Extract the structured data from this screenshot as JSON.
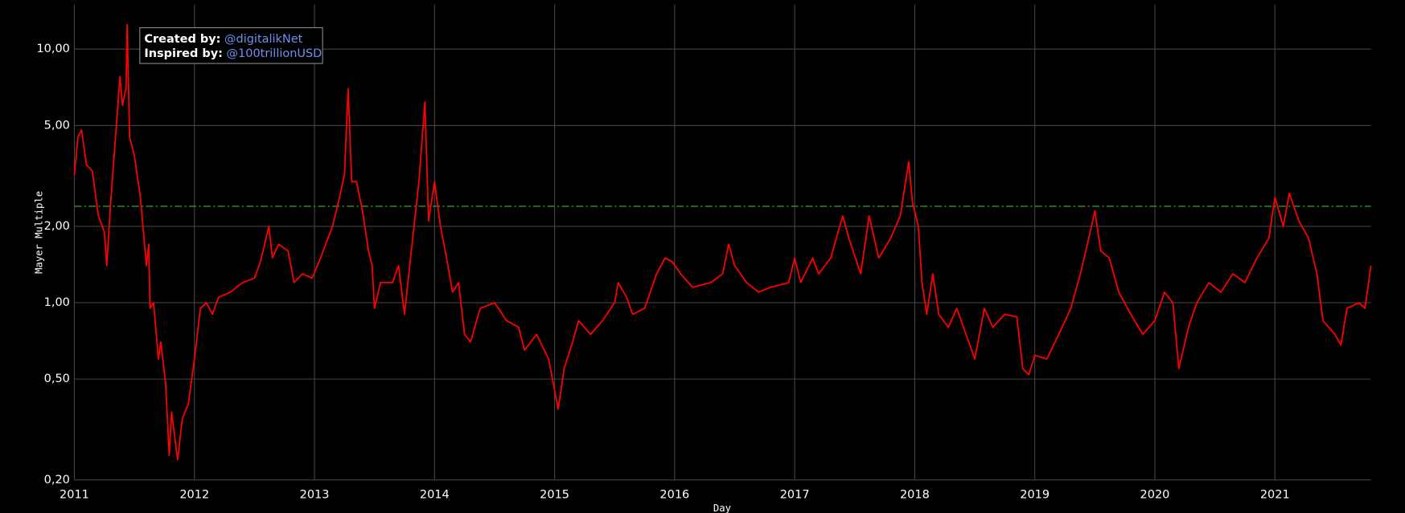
{
  "chart_data": {
    "type": "line",
    "x_label": "Day",
    "y_label": "Mayer Multiple",
    "annotation": {
      "created_label": "Created by:",
      "created_by": "@digitalikNet",
      "inspired_label": "Inspired by:",
      "inspired_by": "@100trillionUSD"
    },
    "color": "#ff0000",
    "log_y": true,
    "grid": true,
    "hline": {
      "value": 2.4,
      "color": "#3e8e3e"
    },
    "xlim": [
      2011,
      2021.8
    ],
    "xticks": [
      2011,
      2012,
      2013,
      2014,
      2015,
      2016,
      2017,
      2018,
      2019,
      2020,
      2021
    ],
    "ylim": [
      0.2,
      15
    ],
    "yticks": [
      {
        "value": 0.2,
        "label": "0,20"
      },
      {
        "value": 0.5,
        "label": "0,50"
      },
      {
        "value": 1,
        "label": "1,00"
      },
      {
        "value": 2,
        "label": "2,00"
      },
      {
        "value": 5,
        "label": "5,00"
      },
      {
        "value": 10,
        "label": "10,00"
      }
    ],
    "x": [
      2011.0,
      2011.03,
      2011.06,
      2011.1,
      2011.15,
      2011.2,
      2011.25,
      2011.27,
      2011.3,
      2011.35,
      2011.38,
      2011.4,
      2011.43,
      2011.44,
      2011.46,
      2011.5,
      2011.55,
      2011.6,
      2011.62,
      2011.63,
      2011.66,
      2011.7,
      2011.72,
      2011.76,
      2011.79,
      2011.81,
      2011.86,
      2011.9,
      2011.95,
      2012.0,
      2012.05,
      2012.1,
      2012.15,
      2012.2,
      2012.3,
      2012.4,
      2012.5,
      2012.55,
      2012.62,
      2012.65,
      2012.7,
      2012.78,
      2012.83,
      2012.9,
      2012.98,
      2013.05,
      2013.15,
      2013.2,
      2013.25,
      2013.28,
      2013.31,
      2013.35,
      2013.4,
      2013.45,
      2013.48,
      2013.5,
      2013.55,
      2013.65,
      2013.7,
      2013.75,
      2013.8,
      2013.87,
      2013.92,
      2013.95,
      2014.0,
      2014.05,
      2014.1,
      2014.15,
      2014.2,
      2014.25,
      2014.3,
      2014.38,
      2014.5,
      2014.6,
      2014.7,
      2014.75,
      2014.85,
      2014.95,
      2015.03,
      2015.08,
      2015.15,
      2015.2,
      2015.3,
      2015.4,
      2015.5,
      2015.53,
      2015.6,
      2015.65,
      2015.75,
      2015.85,
      2015.92,
      2015.98,
      2016.05,
      2016.15,
      2016.3,
      2016.4,
      2016.45,
      2016.5,
      2016.6,
      2016.7,
      2016.8,
      2016.95,
      2017.0,
      2017.05,
      2017.15,
      2017.2,
      2017.3,
      2017.4,
      2017.45,
      2017.55,
      2017.62,
      2017.7,
      2017.8,
      2017.88,
      2017.95,
      2017.98,
      2018.03,
      2018.06,
      2018.1,
      2018.15,
      2018.2,
      2018.28,
      2018.35,
      2018.45,
      2018.5,
      2018.58,
      2018.65,
      2018.75,
      2018.85,
      2018.9,
      2018.95,
      2019.0,
      2019.1,
      2019.2,
      2019.3,
      2019.38,
      2019.45,
      2019.5,
      2019.55,
      2019.62,
      2019.7,
      2019.8,
      2019.9,
      2020.0,
      2020.08,
      2020.15,
      2020.2,
      2020.28,
      2020.35,
      2020.45,
      2020.55,
      2020.65,
      2020.75,
      2020.85,
      2020.95,
      2021.0,
      2021.07,
      2021.12,
      2021.2,
      2021.28,
      2021.35,
      2021.4,
      2021.5,
      2021.55,
      2021.6,
      2021.7,
      2021.75,
      2021.8
    ],
    "values": [
      3.2,
      4.5,
      4.8,
      3.5,
      3.3,
      2.2,
      1.9,
      1.4,
      2.4,
      5.0,
      7.8,
      6.0,
      7.0,
      12.5,
      4.5,
      3.8,
      2.6,
      1.4,
      1.7,
      0.95,
      1.0,
      0.6,
      0.7,
      0.48,
      0.25,
      0.37,
      0.24,
      0.35,
      0.4,
      0.6,
      0.95,
      1.0,
      0.9,
      1.05,
      1.1,
      1.2,
      1.25,
      1.45,
      2.0,
      1.5,
      1.7,
      1.6,
      1.2,
      1.3,
      1.25,
      1.5,
      2.0,
      2.5,
      3.2,
      7.0,
      3.0,
      3.0,
      2.3,
      1.6,
      1.4,
      0.95,
      1.2,
      1.2,
      1.4,
      0.9,
      1.5,
      3.0,
      6.2,
      2.1,
      3.0,
      2.0,
      1.5,
      1.1,
      1.2,
      0.75,
      0.7,
      0.95,
      1.0,
      0.85,
      0.8,
      0.65,
      0.75,
      0.6,
      0.38,
      0.55,
      0.7,
      0.85,
      0.75,
      0.85,
      1.0,
      1.2,
      1.05,
      0.9,
      0.95,
      1.3,
      1.5,
      1.45,
      1.3,
      1.15,
      1.2,
      1.3,
      1.7,
      1.4,
      1.2,
      1.1,
      1.15,
      1.2,
      1.5,
      1.2,
      1.5,
      1.3,
      1.5,
      2.2,
      1.8,
      1.3,
      2.2,
      1.5,
      1.8,
      2.2,
      3.6,
      2.5,
      2.0,
      1.2,
      0.9,
      1.3,
      0.9,
      0.8,
      0.95,
      0.7,
      0.6,
      0.95,
      0.8,
      0.9,
      0.88,
      0.55,
      0.52,
      0.62,
      0.6,
      0.75,
      0.95,
      1.3,
      1.8,
      2.3,
      1.6,
      1.5,
      1.1,
      0.9,
      0.75,
      0.85,
      1.1,
      1.0,
      0.55,
      0.8,
      1.0,
      1.2,
      1.1,
      1.3,
      1.2,
      1.5,
      1.8,
      2.6,
      2.0,
      2.7,
      2.1,
      1.8,
      1.3,
      0.85,
      0.75,
      0.68,
      0.95,
      1.0,
      0.95,
      1.4
    ]
  }
}
